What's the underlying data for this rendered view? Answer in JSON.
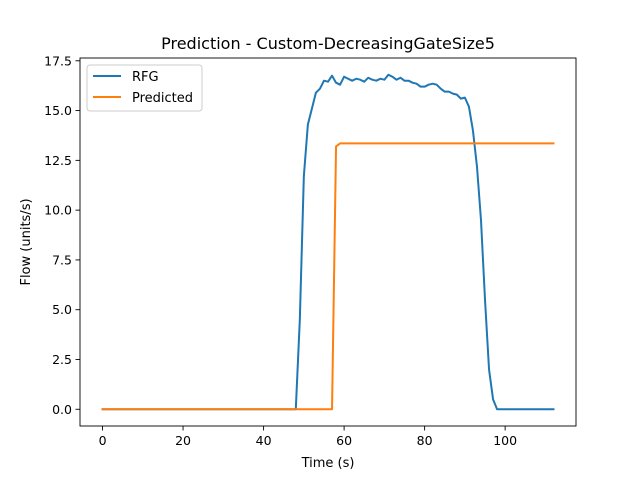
{
  "chart_data": {
    "type": "line",
    "title": "Prediction - Custom-DecreasingGateSize5",
    "xlabel": "Time (s)",
    "ylabel": "Flow (units/s)",
    "xlim": [
      -5.6,
      117.6
    ],
    "ylim": [
      -0.84,
      17.64
    ],
    "x_ticks": [
      0,
      20,
      40,
      60,
      80,
      100
    ],
    "x_tick_labels": [
      "0",
      "20",
      "40",
      "60",
      "80",
      "100"
    ],
    "y_ticks": [
      0.0,
      2.5,
      5.0,
      7.5,
      10.0,
      12.5,
      15.0,
      17.5
    ],
    "y_tick_labels": [
      "0.0",
      "2.5",
      "5.0",
      "7.5",
      "10.0",
      "12.5",
      "15.0",
      "17.5"
    ],
    "grid": false,
    "legend_position": "upper left",
    "series": [
      {
        "name": "RFG",
        "color": "#1f77b4",
        "x": [
          0,
          48,
          49,
          50,
          51,
          52,
          53,
          54,
          55,
          56,
          57,
          58,
          59,
          60,
          61,
          62,
          63,
          64,
          65,
          66,
          67,
          68,
          69,
          70,
          71,
          72,
          73,
          74,
          75,
          76,
          77,
          78,
          79,
          80,
          81,
          82,
          83,
          84,
          85,
          86,
          87,
          88,
          89,
          90,
          91,
          92,
          93,
          94,
          95,
          96,
          97,
          98,
          99,
          100,
          112
        ],
        "y": [
          0,
          0,
          4.5,
          11.7,
          14.3,
          15.1,
          15.9,
          16.1,
          16.5,
          16.45,
          16.75,
          16.4,
          16.3,
          16.7,
          16.6,
          16.5,
          16.6,
          16.55,
          16.45,
          16.65,
          16.55,
          16.5,
          16.6,
          16.55,
          16.8,
          16.7,
          16.55,
          16.65,
          16.5,
          16.5,
          16.4,
          16.35,
          16.2,
          16.2,
          16.3,
          16.35,
          16.3,
          16.1,
          15.95,
          15.95,
          15.85,
          15.8,
          15.6,
          15.65,
          15.2,
          14.0,
          12.2,
          9.5,
          5.5,
          2.0,
          0.5,
          0,
          0,
          0,
          0
        ]
      },
      {
        "name": "Predicted",
        "color": "#ff7f0e",
        "x": [
          0,
          57,
          58,
          59,
          60,
          112
        ],
        "y": [
          0,
          0,
          13.2,
          13.35,
          13.35,
          13.35
        ]
      }
    ]
  }
}
